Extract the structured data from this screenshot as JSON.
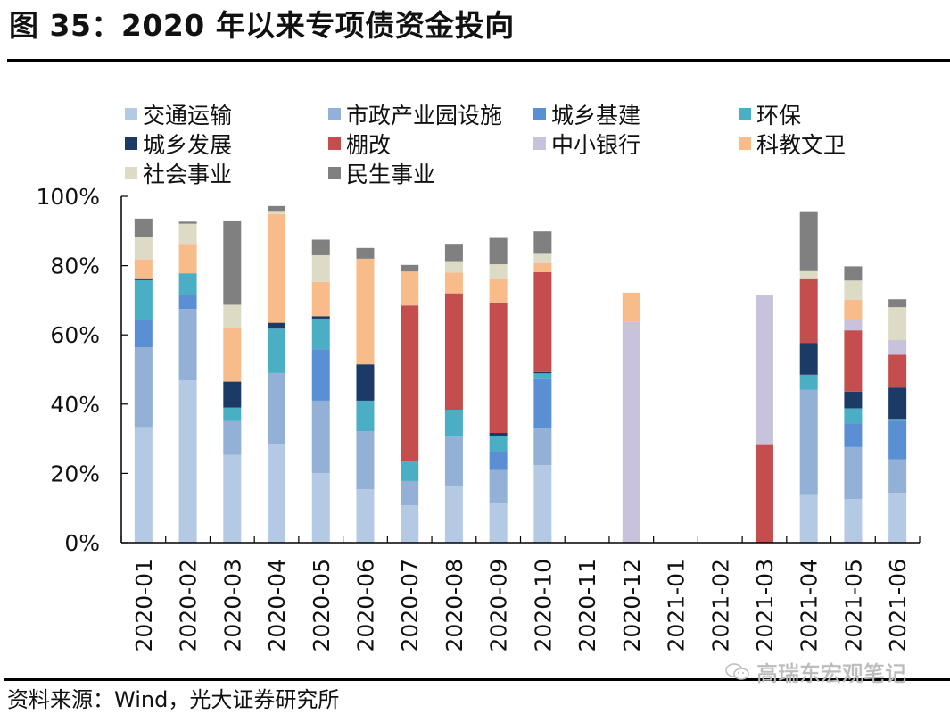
{
  "title": "图 35：2020 年以来专项债资金投向",
  "source": "资料来源：Wind，光大证券研究所",
  "watermark": "高瑞东宏观笔记",
  "watermark_icon": "wechat-icon",
  "chart_data": {
    "type": "bar",
    "stacked": true,
    "title": "2020 年以来专项债资金投向",
    "xlabel": "",
    "ylabel": "",
    "ylim": [
      0,
      100
    ],
    "yticks": [
      "0%",
      "20%",
      "40%",
      "60%",
      "80%",
      "100%"
    ],
    "ytick_values": [
      0,
      20,
      40,
      60,
      80,
      100
    ],
    "grid": false,
    "legend_position": "top",
    "categories": [
      "2020-01",
      "2020-02",
      "2020-03",
      "2020-04",
      "2020-05",
      "2020-06",
      "2020-07",
      "2020-08",
      "2020-09",
      "2020-10",
      "2020-11",
      "2020-12",
      "2021-01",
      "2021-02",
      "2021-03",
      "2021-04",
      "2021-05",
      "2021-06"
    ],
    "series": [
      {
        "name": "交通运输",
        "color": "#b4c9e4",
        "values": [
          33.4,
          46.9,
          25.4,
          28.4,
          20.1,
          15.4,
          10.8,
          16.2,
          11.3,
          22.4,
          0,
          0,
          0,
          0,
          0,
          13.8,
          12.6,
          14.4
        ]
      },
      {
        "name": "市政产业园设施",
        "color": "#93b0d6",
        "values": [
          23.0,
          20.6,
          9.7,
          20.6,
          20.9,
          16.8,
          7.0,
          14.4,
          9.7,
          10.8,
          0,
          0,
          0,
          0,
          0,
          30.4,
          15.0,
          9.7
        ]
      },
      {
        "name": "城乡基建",
        "color": "#5b8fd4",
        "values": [
          8.0,
          4.3,
          0,
          0,
          14.9,
          0,
          0,
          0,
          5.4,
          14.0,
          0,
          0,
          0,
          0,
          0,
          0,
          6.9,
          11.1
        ]
      },
      {
        "name": "环保",
        "color": "#4aaec4",
        "values": [
          11.4,
          6.0,
          3.9,
          12.8,
          8.8,
          8.8,
          5.6,
          7.8,
          4.5,
          1.7,
          0,
          0,
          0,
          0,
          0,
          4.3,
          4.3,
          0.3
        ]
      },
      {
        "name": "城乡发展",
        "color": "#1c3a66",
        "values": [
          0.3,
          0,
          7.5,
          1.7,
          0.7,
          10.5,
          0,
          0,
          0.8,
          0.4,
          0,
          0,
          0,
          0,
          0,
          9.2,
          4.8,
          9.3
        ]
      },
      {
        "name": "棚改",
        "color": "#c44d4d",
        "values": [
          0,
          0,
          0,
          0,
          0,
          0,
          45.1,
          33.6,
          37.4,
          28.8,
          0,
          0,
          0,
          0,
          28.2,
          18.4,
          17.7,
          9.5
        ]
      },
      {
        "name": "中小银行",
        "color": "#c9c2dd",
        "values": [
          0,
          0,
          0,
          0,
          0,
          0,
          0,
          0,
          0,
          0,
          0,
          63.7,
          0,
          0,
          43.3,
          0,
          3.1,
          4.2
        ]
      },
      {
        "name": "科教文卫",
        "color": "#f8bb8a",
        "values": [
          5.7,
          8.5,
          15.5,
          31.4,
          9.9,
          30.5,
          9.8,
          6.0,
          7.0,
          2.6,
          0,
          8.5,
          0,
          0,
          0,
          0,
          5.7,
          0
        ]
      },
      {
        "name": "社会事业",
        "color": "#dddac5",
        "values": [
          6.6,
          5.8,
          6.7,
          0.9,
          7.7,
          0,
          0,
          3.3,
          4.3,
          2.7,
          0,
          0,
          0,
          0,
          0,
          2.3,
          5.6,
          9.5
        ]
      },
      {
        "name": "民生事业",
        "color": "#808080",
        "values": [
          5.2,
          0.6,
          24.1,
          1.4,
          4.5,
          3.1,
          1.9,
          5.0,
          7.6,
          6.5,
          0,
          0,
          0,
          0,
          0,
          17.3,
          4.1,
          2.3
        ]
      }
    ]
  }
}
